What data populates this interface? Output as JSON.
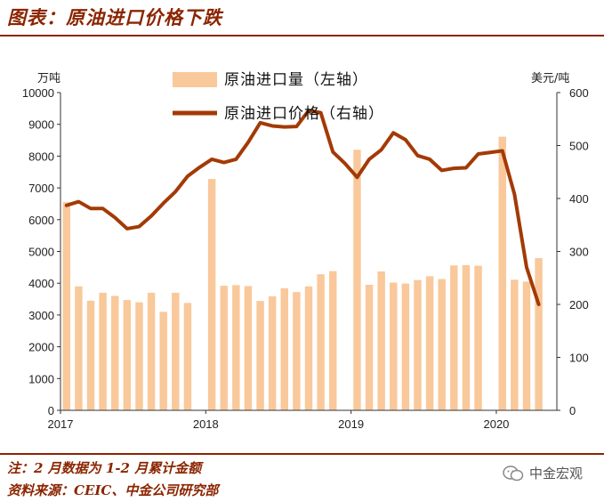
{
  "header": {
    "title": "图表：原油进口价格下跌"
  },
  "footer": {
    "note": "注：2 月数据为 1-2 月累计金额",
    "source": "资料来源：CEIC、中金公司研究部",
    "watermark": "中金宏观"
  },
  "chart_data": {
    "type": "bar+line",
    "left_axis_unit": "万吨",
    "right_axis_unit": "美元/吨",
    "left_ylim": [
      0,
      10000
    ],
    "right_ylim": [
      0,
      600
    ],
    "left_ticks": [
      "0",
      "1000",
      "2000",
      "3000",
      "4000",
      "5000",
      "6000",
      "7000",
      "8000",
      "9000",
      "10000"
    ],
    "right_ticks": [
      "0",
      "100",
      "200",
      "300",
      "400",
      "500",
      "600"
    ],
    "x_tick_labels": [
      "2017",
      "2018",
      "2019",
      "2020"
    ],
    "x_tick_index": [
      0,
      12,
      24,
      36
    ],
    "months": [
      "2017-01",
      "2017-02",
      "2017-03",
      "2017-04",
      "2017-05",
      "2017-06",
      "2017-07",
      "2017-08",
      "2017-09",
      "2017-10",
      "2017-11",
      "2017-12",
      "2018-01",
      "2018-02",
      "2018-03",
      "2018-04",
      "2018-05",
      "2018-06",
      "2018-07",
      "2018-08",
      "2018-09",
      "2018-10",
      "2018-11",
      "2018-12",
      "2019-01",
      "2019-02",
      "2019-03",
      "2019-04",
      "2019-05",
      "2019-06",
      "2019-07",
      "2019-08",
      "2019-09",
      "2019-10",
      "2019-11",
      "2019-12",
      "2020-01",
      "2020-02",
      "2020-03",
      "2020-04",
      "2020-05"
    ],
    "series": [
      {
        "name": "原油进口量（左轴）",
        "axis": "left",
        "kind": "bar",
        "color": "#F9C89B",
        "values": [
          6550,
          3900,
          3450,
          3700,
          3600,
          3470,
          3400,
          3700,
          3100,
          3700,
          3380,
          null,
          7280,
          3920,
          3940,
          3910,
          3440,
          3590,
          3840,
          3720,
          3900,
          4280,
          4380,
          null,
          8200,
          3950,
          4370,
          4020,
          3990,
          4100,
          4220,
          4130,
          4560,
          4570,
          4550,
          null,
          8610,
          4110,
          4050,
          4790,
          null
        ]
      },
      {
        "name": "原油进口价格（右轴）",
        "axis": "right",
        "kind": "line",
        "color": "#A33A06",
        "values": [
          387,
          394,
          381,
          381,
          364,
          343,
          347,
          367,
          391,
          413,
          442,
          459,
          474,
          468,
          474,
          506,
          543,
          537,
          535,
          536,
          566,
          562,
          488,
          466,
          440,
          474,
          492,
          524,
          511,
          481,
          474,
          453,
          457,
          458,
          484,
          487,
          490,
          408,
          270,
          200,
          null
        ]
      }
    ],
    "legend": [
      {
        "label": "原油进口量（左轴）",
        "kind": "bar"
      },
      {
        "label": "原油进口价格（右轴）",
        "kind": "line"
      }
    ]
  }
}
